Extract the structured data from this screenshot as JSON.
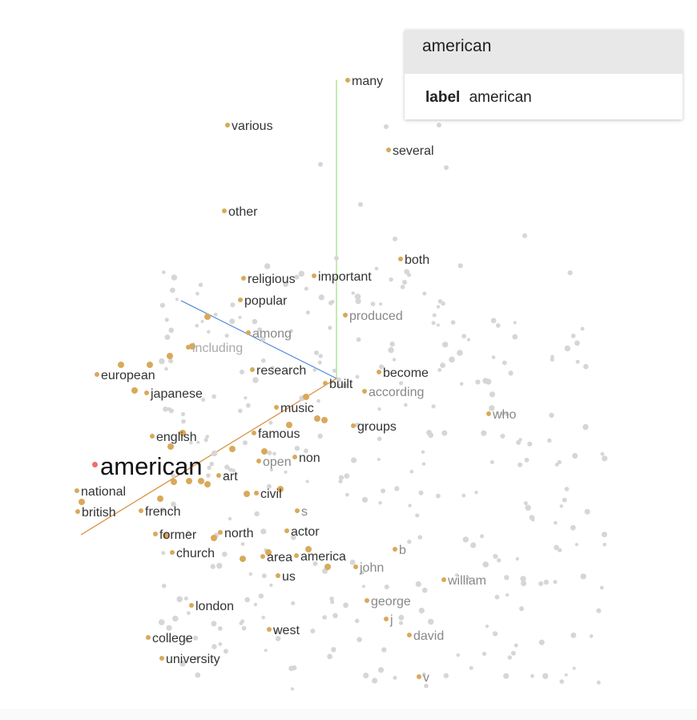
{
  "info_panel": {
    "selected_word": "american",
    "label_key": "label",
    "label_value": "american"
  },
  "colors": {
    "point": "#d9a95a",
    "background_point": "#d6d6d6",
    "selected_point": "#f06c6c",
    "axis_green": "#9be07a",
    "axis_blue": "#4a86d6",
    "axis_orange": "#d98a3b"
  },
  "words": [
    {
      "text": "many",
      "style": "normal"
    },
    {
      "text": "various",
      "style": "normal"
    },
    {
      "text": "several",
      "style": "normal"
    },
    {
      "text": "other",
      "style": "normal"
    },
    {
      "text": "both",
      "style": "normal"
    },
    {
      "text": "religious",
      "style": "normal"
    },
    {
      "text": "important",
      "style": "normal"
    },
    {
      "text": "popular",
      "style": "normal"
    },
    {
      "text": "produced",
      "style": "dim"
    },
    {
      "text": "among",
      "style": "dim"
    },
    {
      "text": "including",
      "style": "faint"
    },
    {
      "text": "european",
      "style": "normal"
    },
    {
      "text": "research",
      "style": "normal"
    },
    {
      "text": "become",
      "style": "normal"
    },
    {
      "text": "built",
      "style": "normal"
    },
    {
      "text": "according",
      "style": "dim"
    },
    {
      "text": "japanese",
      "style": "normal"
    },
    {
      "text": "music",
      "style": "normal"
    },
    {
      "text": "who",
      "style": "dim"
    },
    {
      "text": "groups",
      "style": "normal"
    },
    {
      "text": "english",
      "style": "normal"
    },
    {
      "text": "famous",
      "style": "normal"
    },
    {
      "text": "american",
      "style": "big"
    },
    {
      "text": "open",
      "style": "dim"
    },
    {
      "text": "non",
      "style": "normal"
    },
    {
      "text": "art",
      "style": "normal"
    },
    {
      "text": "national",
      "style": "normal"
    },
    {
      "text": "civil",
      "style": "normal"
    },
    {
      "text": "british",
      "style": "normal"
    },
    {
      "text": "french",
      "style": "normal"
    },
    {
      "text": "s",
      "style": "dim"
    },
    {
      "text": "former",
      "style": "normal"
    },
    {
      "text": "north",
      "style": "normal"
    },
    {
      "text": "actor",
      "style": "normal"
    },
    {
      "text": "church",
      "style": "normal"
    },
    {
      "text": "area",
      "style": "normal"
    },
    {
      "text": "america",
      "style": "normal"
    },
    {
      "text": "b",
      "style": "dim"
    },
    {
      "text": "john",
      "style": "dim"
    },
    {
      "text": "us",
      "style": "normal"
    },
    {
      "text": "william",
      "style": "dim"
    },
    {
      "text": "london",
      "style": "normal"
    },
    {
      "text": "george",
      "style": "dim"
    },
    {
      "text": "j",
      "style": "dim"
    },
    {
      "text": "west",
      "style": "normal"
    },
    {
      "text": "david",
      "style": "dim"
    },
    {
      "text": "college",
      "style": "normal"
    },
    {
      "text": "university",
      "style": "normal"
    },
    {
      "text": "v",
      "style": "dim"
    }
  ]
}
